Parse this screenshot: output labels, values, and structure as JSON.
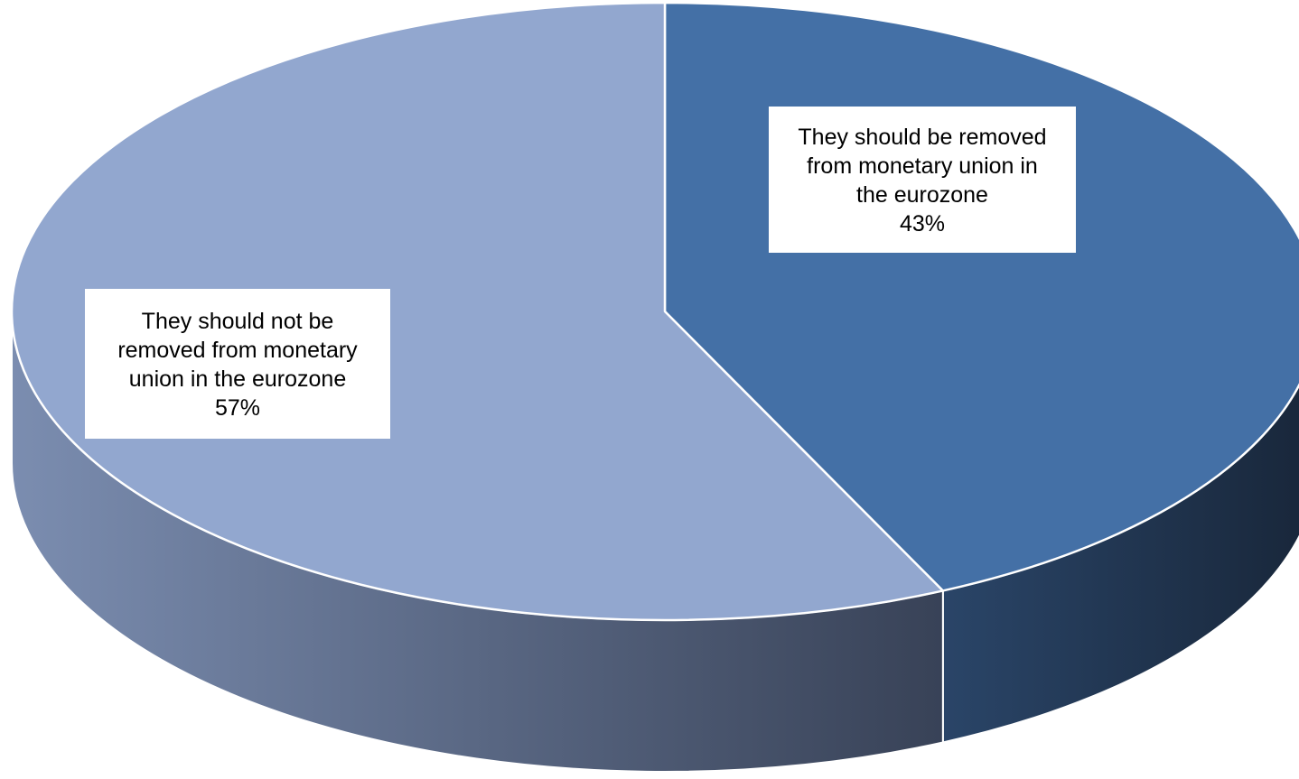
{
  "chart_data": {
    "type": "pie",
    "style": "3d",
    "slices": [
      {
        "label_lines": [
          "They should be removed",
          "from monetary union in",
          "the eurozone"
        ],
        "value": 43,
        "value_label": "43%",
        "color": "#4470a6",
        "side_color_light": "#2a4568",
        "side_color_dark": "#182639"
      },
      {
        "label_lines": [
          "They should not be",
          "removed from monetary",
          "union in the eurozone"
        ],
        "value": 57,
        "value_label": "57%",
        "color": "#92a7cf",
        "side_color_light": "#7b8db0",
        "side_color_dark": "#384257"
      }
    ],
    "legend": "none",
    "data_labels": "category name and percentage, white boxes"
  }
}
